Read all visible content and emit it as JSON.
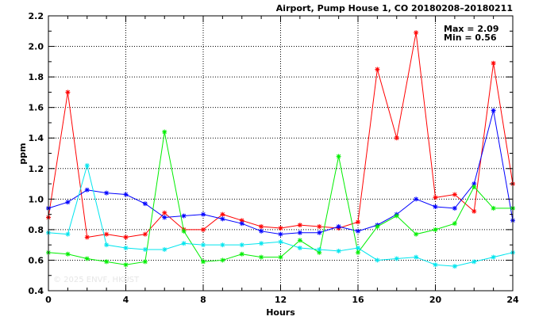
{
  "chart_data": {
    "type": "line",
    "title": "Airport, Pump House 1, CO 20180208–20180211",
    "xlabel": "Hours",
    "ylabel": "ppm",
    "xlim": [
      0,
      24
    ],
    "ylim": [
      0.4,
      2.2
    ],
    "xticks": [
      "0",
      "4",
      "8",
      "12",
      "16",
      "20",
      "24"
    ],
    "yticks": [
      "0.4",
      "0.6",
      "0.8",
      "1.0",
      "1.2",
      "1.4",
      "1.6",
      "1.8",
      "2.0",
      "2.2"
    ],
    "grid": true,
    "annotations": [
      "Max = 2.09",
      "Min = 0.56"
    ],
    "watermark": "© 2025  ENVF, HKUST",
    "series": [
      {
        "color": "#ff0000",
        "x": [
          0,
          1,
          2,
          3,
          4,
          5,
          6,
          7,
          8,
          9,
          10,
          11,
          12,
          13,
          14,
          15,
          16,
          17,
          18,
          19,
          20,
          21,
          22,
          23,
          24
        ],
        "y": [
          0.88,
          1.7,
          0.75,
          0.77,
          0.75,
          0.77,
          0.91,
          0.8,
          0.8,
          0.9,
          0.86,
          0.82,
          0.81,
          0.83,
          0.82,
          0.81,
          0.85,
          1.85,
          1.4,
          2.09,
          1.01,
          1.03,
          0.92,
          1.89,
          1.1
        ]
      },
      {
        "color": "#0000ff",
        "x": [
          0,
          1,
          2,
          3,
          4,
          5,
          6,
          7,
          8,
          9,
          10,
          11,
          12,
          13,
          14,
          15,
          16,
          17,
          18,
          19,
          20,
          21,
          22,
          23,
          24
        ],
        "y": [
          0.94,
          0.98,
          1.06,
          1.04,
          1.03,
          0.97,
          0.88,
          0.89,
          0.9,
          0.87,
          0.84,
          0.79,
          0.77,
          0.78,
          0.78,
          0.82,
          0.79,
          0.83,
          0.9,
          1.0,
          0.95,
          0.94,
          1.1,
          1.58,
          0.86
        ]
      },
      {
        "color": "#00ee00",
        "x": [
          0,
          1,
          2,
          3,
          4,
          5,
          6,
          7,
          8,
          9,
          10,
          11,
          12,
          13,
          14,
          15,
          16,
          17,
          18,
          19,
          20,
          21,
          22,
          23,
          24
        ],
        "y": [
          0.65,
          0.64,
          0.61,
          0.59,
          0.57,
          0.59,
          1.44,
          0.79,
          0.59,
          0.6,
          0.64,
          0.62,
          0.62,
          0.73,
          0.65,
          1.28,
          0.65,
          0.82,
          0.89,
          0.77,
          0.8,
          0.84,
          1.08,
          0.94,
          0.94
        ]
      },
      {
        "color": "#00e5ee",
        "x": [
          0,
          1,
          2,
          3,
          4,
          5,
          6,
          7,
          8,
          9,
          10,
          11,
          12,
          13,
          14,
          15,
          16,
          17,
          18,
          19,
          20,
          21,
          22,
          23,
          24
        ],
        "y": [
          0.78,
          0.77,
          1.22,
          0.7,
          0.68,
          0.67,
          0.67,
          0.71,
          0.7,
          0.7,
          0.7,
          0.71,
          0.72,
          0.68,
          0.67,
          0.66,
          0.68,
          0.6,
          0.61,
          0.62,
          0.57,
          0.56,
          0.59,
          0.62,
          0.65
        ]
      }
    ]
  }
}
